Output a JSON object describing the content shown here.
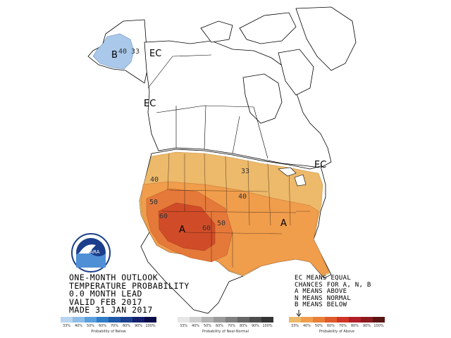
{
  "title_lines": [
    "ONE-MONTH OUTLOOK",
    "TEMPERATURE PROBABILITY",
    "0.0 MONTH LEAD",
    "VALID FEB 2017",
    "MADE 31 JAN 2017"
  ],
  "legend_notes": [
    "EC MEANS EQUAL",
    "CHANCES FOR A, N, B",
    "A MEANS ABOVE",
    "N MEANS NORMAL",
    "B MEANS BELOW"
  ],
  "map_labels": {
    "alaska_b": "B",
    "alaska_40_33": "40 33",
    "ec_canada": "EC",
    "ec_bc": "EC",
    "ec_east": "EC",
    "contour_33": "33",
    "contour_40_west": "40",
    "contour_40_central": "40",
    "contour_50_west": "50",
    "contour_50_east": "50",
    "contour_60_west": "60",
    "contour_60_east": "60",
    "a_southwest": "A",
    "a_southeast": "A"
  },
  "logo": {
    "text": "NOARA"
  },
  "scales": {
    "below": {
      "title": "Probability of Below",
      "ticks": [
        "33%",
        "40%",
        "50%",
        "60%",
        "70%",
        "80%",
        "90%",
        "100%"
      ],
      "colors": [
        "#b9d5ef",
        "#8fbde8",
        "#5b9fdc",
        "#2f7cc7",
        "#1f5aa8",
        "#1b3f8c",
        "#141f6b",
        "#0b0b48"
      ]
    },
    "normal": {
      "title": "Probability of Near-Normal",
      "ticks": [
        "33%",
        "40%",
        "50%",
        "60%",
        "70%",
        "80%",
        "90%",
        "100%"
      ],
      "colors": [
        "#e6e6e6",
        "#cfcfcf",
        "#b4b4b4",
        "#9a9a9a",
        "#808080",
        "#666666",
        "#4d4d4d",
        "#333333"
      ]
    },
    "above": {
      "title": "Probability of Above",
      "ticks": [
        "33%",
        "40%",
        "50%",
        "60%",
        "70%",
        "80%",
        "90%",
        "100%"
      ],
      "colors": [
        "#edb96a",
        "#f09d4c",
        "#ea7f37",
        "#de5a2a",
        "#cf3525",
        "#b01e27",
        "#8b1a1f",
        "#5a1414"
      ]
    }
  },
  "colors": {
    "above_33": "#edb96a",
    "above_40": "#f09d4c",
    "above_50": "#ea7f37",
    "above_60": "#d9522a",
    "below_33": "#a9c8ea"
  }
}
